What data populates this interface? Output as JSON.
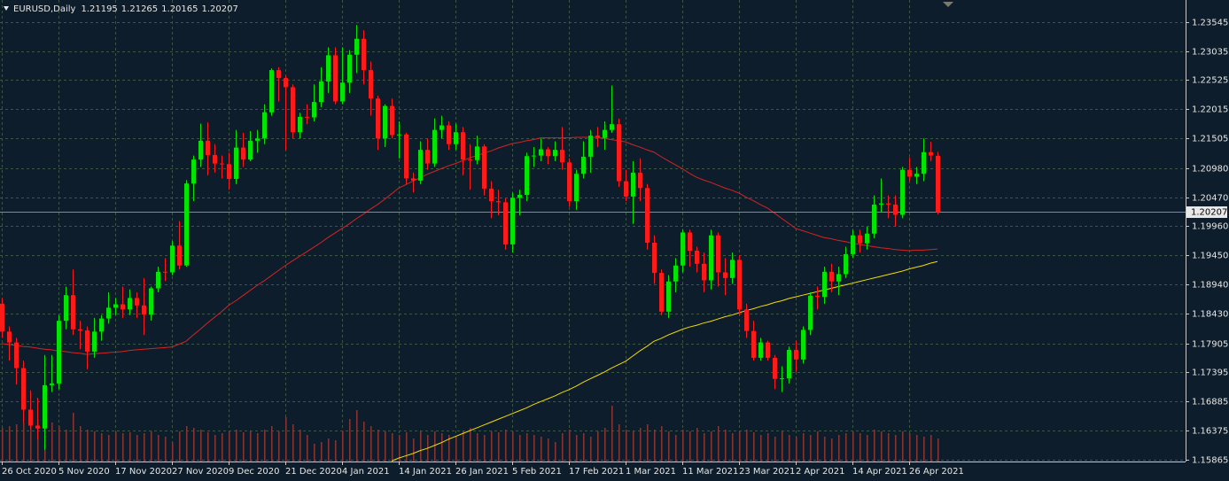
{
  "chart_data": {
    "type": "candlestick",
    "symbol": "EURUSD,Daily",
    "categories": [
      "26 Oct 2020",
      null,
      null,
      null,
      null,
      null,
      null,
      null,
      "5 Nov 2020",
      null,
      null,
      null,
      null,
      null,
      null,
      null,
      "17 Nov 2020",
      null,
      null,
      null,
      null,
      null,
      null,
      null,
      "27 Nov 2020",
      null,
      null,
      null,
      null,
      null,
      null,
      null,
      "9 Dec 2020",
      null,
      null,
      null,
      null,
      null,
      null,
      null,
      "21 Dec 2020",
      null,
      null,
      null,
      null,
      null,
      null,
      null,
      "4 Jan 2021",
      null,
      null,
      null,
      null,
      null,
      null,
      null,
      "14 Jan 2021",
      null,
      null,
      null,
      null,
      null,
      null,
      null,
      "26 Jan 2021",
      null,
      null,
      null,
      null,
      null,
      null,
      null,
      "5 Feb 2021",
      null,
      null,
      null,
      null,
      null,
      null,
      null,
      "17 Feb 2021",
      null,
      null,
      null,
      null,
      null,
      null,
      null,
      "1 Mar 2021",
      null,
      null,
      null,
      null,
      null,
      null,
      null,
      "11 Mar 2021",
      null,
      null,
      null,
      null,
      null,
      null,
      null,
      "23 Mar 2021",
      null,
      null,
      null,
      null,
      null,
      null,
      null,
      "2 Apr 2021",
      null,
      null,
      null,
      null,
      null,
      null,
      null,
      "14 Apr 2021",
      null,
      null,
      null,
      null,
      null,
      null,
      null,
      "26 Apr 2021",
      null,
      null,
      null,
      null
    ],
    "open": [
      1.186,
      1.1811,
      1.1792,
      1.1747,
      1.1674,
      1.1646,
      1.1641,
      1.1717,
      1.172,
      1.183,
      1.1875,
      1.1815,
      1.1813,
      1.1776,
      1.1811,
      1.1834,
      1.1853,
      1.1859,
      1.185,
      1.187,
      1.1857,
      1.1841,
      1.1887,
      1.1916,
      1.1915,
      1.1962,
      1.1927,
      1.2071,
      1.2113,
      1.2146,
      1.2121,
      1.2106,
      1.2105,
      1.2079,
      1.2134,
      1.2113,
      1.2146,
      1.215,
      1.2196,
      1.227,
      1.2256,
      1.224,
      1.2161,
      1.2188,
      1.2187,
      1.2214,
      1.225,
      1.2296,
      1.2215,
      1.2248,
      1.2297,
      1.2325,
      1.227,
      1.222,
      1.215,
      1.2207,
      1.2156,
      1.2157,
      1.208,
      1.2076,
      1.213,
      1.2106,
      1.2165,
      1.2173,
      1.214,
      1.2161,
      1.2113,
      1.2112,
      1.2136,
      1.2062,
      1.204,
      1.2038,
      1.1964,
      1.2046,
      1.2051,
      1.2119,
      1.212,
      1.2131,
      1.2119,
      1.213,
      1.2108,
      1.204,
      1.2088,
      1.2118,
      1.2155,
      1.2151,
      1.2165,
      1.2175,
      1.2075,
      1.2048,
      1.209,
      1.2063,
      1.1967,
      1.1914,
      1.1846,
      1.1899,
      1.1927,
      1.1985,
      1.1953,
      1.193,
      1.1901,
      1.198,
      1.1915,
      1.1905,
      1.1937,
      1.185,
      1.1812,
      1.1765,
      1.1792,
      1.1765,
      1.1728,
      1.1729,
      1.1779,
      1.1762,
      1.1814,
      1.1874,
      1.1872,
      1.1916,
      1.1899,
      1.1912,
      1.1947,
      1.198,
      1.1966,
      1.1983,
      1.2034,
      1.2036,
      1.2034,
      1.2016,
      1.2095,
      1.2083,
      1.2088,
      1.2126,
      1.21195
    ],
    "high": [
      1.187,
      1.182,
      1.18,
      1.176,
      1.1708,
      1.1695,
      1.177,
      1.177,
      1.184,
      1.189,
      1.192,
      1.183,
      1.182,
      1.1835,
      1.184,
      1.188,
      1.187,
      1.189,
      1.1885,
      1.188,
      1.1905,
      1.189,
      1.1925,
      1.194,
      1.197,
      1.2005,
      1.2077,
      1.212,
      1.2176,
      1.2178,
      1.214,
      1.212,
      1.2125,
      1.2165,
      1.216,
      1.2163,
      1.2165,
      1.221,
      1.2273,
      1.2275,
      1.226,
      1.2245,
      1.2195,
      1.221,
      1.2245,
      1.2275,
      1.231,
      1.231,
      1.231,
      1.2305,
      1.2349,
      1.234,
      1.2285,
      1.2225,
      1.221,
      1.222,
      1.218,
      1.216,
      1.209,
      1.2145,
      1.215,
      1.2185,
      1.219,
      1.218,
      1.2176,
      1.217,
      1.214,
      1.2155,
      1.214,
      1.2075,
      1.206,
      1.2045,
      1.2055,
      1.206,
      1.2125,
      1.2135,
      1.215,
      1.2135,
      1.2145,
      1.217,
      1.2115,
      1.2095,
      1.2145,
      1.2165,
      1.217,
      1.218,
      1.2243,
      1.2185,
      1.2095,
      1.211,
      1.2115,
      1.207,
      1.198,
      1.192,
      1.191,
      1.194,
      1.199,
      1.199,
      1.196,
      1.195,
      1.199,
      1.1985,
      1.194,
      1.195,
      1.1945,
      1.186,
      1.183,
      1.18,
      1.1795,
      1.177,
      1.175,
      1.1785,
      1.1795,
      1.182,
      1.188,
      1.189,
      1.1925,
      1.193,
      1.1925,
      1.196,
      1.199,
      1.199,
      1.1995,
      1.205,
      1.208,
      1.205,
      1.205,
      1.21,
      1.2117,
      1.21,
      1.215,
      1.2144,
      1.21265
    ],
    "low": [
      1.18,
      1.176,
      1.1718,
      1.165,
      1.164,
      1.1622,
      1.1603,
      1.1705,
      1.171,
      1.1815,
      1.1805,
      1.178,
      1.1745,
      1.1765,
      1.1795,
      1.1825,
      1.184,
      1.1835,
      1.184,
      1.1835,
      1.1805,
      1.183,
      1.188,
      1.19,
      1.191,
      1.192,
      1.1925,
      1.204,
      1.21,
      1.2085,
      1.209,
      1.208,
      1.206,
      1.207,
      1.21,
      1.211,
      1.2125,
      1.214,
      1.219,
      1.2215,
      1.213,
      1.215,
      1.215,
      1.2175,
      1.218,
      1.2205,
      1.223,
      1.221,
      1.221,
      1.223,
      1.2265,
      1.2245,
      1.219,
      1.213,
      1.2135,
      1.215,
      1.2115,
      1.207,
      1.2055,
      1.207,
      1.2095,
      1.21,
      1.215,
      1.213,
      1.213,
      1.2085,
      1.206,
      1.2105,
      1.205,
      1.201,
      1.2015,
      1.1955,
      1.195,
      1.2015,
      1.204,
      1.21,
      1.211,
      1.2105,
      1.211,
      1.2095,
      1.203,
      1.2025,
      1.208,
      1.209,
      1.2135,
      1.213,
      1.216,
      1.2065,
      1.204,
      1.2,
      1.204,
      1.1955,
      1.1895,
      1.184,
      1.1835,
      1.188,
      1.1915,
      1.1925,
      1.1915,
      1.188,
      1.1885,
      1.189,
      1.1875,
      1.1895,
      1.184,
      1.18,
      1.176,
      1.176,
      1.176,
      1.171,
      1.1705,
      1.172,
      1.174,
      1.1755,
      1.1805,
      1.185,
      1.186,
      1.188,
      1.1875,
      1.1905,
      1.194,
      1.195,
      1.1955,
      1.1975,
      1.202,
      1.201,
      1.1995,
      1.201,
      1.2075,
      1.207,
      1.2075,
      1.211,
      1.20165
    ],
    "close": [
      1.1811,
      1.1792,
      1.1747,
      1.1674,
      1.1646,
      1.1641,
      1.1717,
      1.172,
      1.183,
      1.1875,
      1.1815,
      1.1813,
      1.1776,
      1.1811,
      1.1834,
      1.1853,
      1.1859,
      1.185,
      1.187,
      1.1857,
      1.1841,
      1.1887,
      1.1916,
      1.1915,
      1.1962,
      1.1927,
      1.2071,
      1.2113,
      1.2146,
      1.2121,
      1.2106,
      1.2105,
      1.2079,
      1.2134,
      1.2113,
      1.2146,
      1.215,
      1.2196,
      1.227,
      1.2256,
      1.224,
      1.2161,
      1.2188,
      1.2187,
      1.2214,
      1.225,
      1.2296,
      1.2215,
      1.2248,
      1.2297,
      1.2325,
      1.227,
      1.222,
      1.215,
      1.2207,
      1.2156,
      1.2157,
      1.208,
      1.2076,
      1.213,
      1.2106,
      1.2165,
      1.2173,
      1.214,
      1.2161,
      1.2113,
      1.2112,
      1.2136,
      1.2062,
      1.204,
      1.2038,
      1.1964,
      1.2046,
      1.2051,
      1.2119,
      1.212,
      1.2131,
      1.2119,
      1.213,
      1.2108,
      1.204,
      1.2088,
      1.2118,
      1.2155,
      1.2151,
      1.2165,
      1.2175,
      1.2075,
      1.2048,
      1.209,
      1.2063,
      1.1967,
      1.1914,
      1.1846,
      1.1899,
      1.1927,
      1.1985,
      1.1953,
      1.193,
      1.1901,
      1.198,
      1.1915,
      1.1905,
      1.1937,
      1.185,
      1.1812,
      1.1765,
      1.1792,
      1.1765,
      1.1728,
      1.1729,
      1.1779,
      1.1762,
      1.1814,
      1.1874,
      1.1872,
      1.1916,
      1.1899,
      1.1912,
      1.1947,
      1.198,
      1.1966,
      1.1983,
      1.2034,
      1.2036,
      1.2034,
      1.2016,
      1.2095,
      1.2083,
      1.2088,
      1.2126,
      1.212,
      1.20207
    ],
    "volume": [
      38,
      40,
      42,
      44,
      45,
      48,
      52,
      44,
      40,
      36,
      55,
      40,
      36,
      34,
      32,
      30,
      34,
      32,
      33,
      30,
      32,
      34,
      30,
      28,
      22,
      34,
      40,
      38,
      36,
      33,
      30,
      32,
      34,
      36,
      33,
      34,
      32,
      36,
      40,
      34,
      50,
      42,
      36,
      30,
      20,
      22,
      26,
      24,
      35,
      48,
      58,
      45,
      40,
      36,
      34,
      32,
      30,
      33,
      26,
      34,
      30,
      34,
      32,
      30,
      28,
      34,
      38,
      32,
      30,
      34,
      33,
      36,
      34,
      30,
      32,
      30,
      28,
      26,
      22,
      32,
      36,
      30,
      32,
      28,
      34,
      38,
      63,
      42,
      36,
      34,
      38,
      42,
      36,
      40,
      34,
      30,
      36,
      34,
      38,
      32,
      34,
      40,
      36,
      32,
      34,
      36,
      33,
      30,
      32,
      28,
      34,
      30,
      28,
      32,
      30,
      34,
      28,
      26,
      30,
      32,
      34,
      32,
      30,
      36,
      34,
      32,
      30,
      34,
      32,
      30,
      28,
      30,
      26
    ],
    "up_color": "#00e600",
    "down_color": "#ff1a1a",
    "volume_color": "#8a3434",
    "series": [
      {
        "color": "#d42424",
        "values": [
          1.179,
          1.1788,
          1.1787,
          1.1785,
          1.1784,
          1.1782,
          1.178,
          1.1779,
          1.1777,
          1.1776,
          1.1774,
          1.1773,
          1.1771,
          1.1772,
          1.1773,
          1.1774,
          1.1775,
          1.1776,
          1.1778,
          1.1779,
          1.178,
          1.1781,
          1.1782,
          1.1783,
          1.1784,
          1.1789,
          1.1794,
          1.1805,
          1.1815,
          1.1826,
          1.1836,
          1.1846,
          1.1857,
          1.1865,
          1.1874,
          1.1883,
          1.1892,
          1.19,
          1.1909,
          1.1918,
          1.1927,
          1.1935,
          1.1943,
          1.1951,
          1.1959,
          1.1967,
          1.1976,
          1.1984,
          1.1992,
          1.2,
          1.2009,
          1.2017,
          1.2026,
          1.2034,
          1.2043,
          1.2053,
          1.2063,
          1.2069,
          1.2075,
          1.2081,
          1.2087,
          1.2092,
          1.2097,
          1.2102,
          1.2106,
          1.2111,
          1.2116,
          1.212,
          1.2124,
          1.2128,
          1.2133,
          1.2137,
          1.2141,
          1.2143,
          1.2146,
          1.2148,
          1.2151,
          1.2151,
          1.2151,
          1.2151,
          1.2151,
          1.2152,
          1.2152,
          1.2152,
          1.2152,
          1.215,
          1.2148,
          1.2146,
          1.2144,
          1.2139,
          1.2135,
          1.213,
          1.2126,
          1.2118,
          1.2111,
          1.2104,
          1.2097,
          1.2089,
          1.2082,
          1.2077,
          1.2073,
          1.2068,
          1.2063,
          1.2059,
          1.2054,
          1.2047,
          1.2041,
          1.2034,
          1.2028,
          1.2019,
          1.201,
          1.2001,
          1.1992,
          1.1988,
          1.1984,
          1.198,
          1.1976,
          1.1974,
          1.1971,
          1.1969,
          1.1966,
          1.1964,
          1.1962,
          1.196,
          1.1958,
          1.1957,
          1.1955,
          1.1954,
          1.1953,
          1.1954,
          1.1954,
          1.1955,
          1.1956
        ]
      },
      {
        "color": "#f2dc00",
        "values": [
          null,
          null,
          null,
          null,
          null,
          null,
          null,
          null,
          null,
          null,
          null,
          null,
          null,
          null,
          null,
          null,
          null,
          null,
          null,
          null,
          null,
          null,
          null,
          null,
          null,
          null,
          null,
          null,
          null,
          null,
          null,
          null,
          null,
          null,
          null,
          null,
          null,
          null,
          null,
          null,
          null,
          null,
          null,
          null,
          null,
          null,
          null,
          null,
          null,
          null,
          null,
          null,
          null,
          null,
          null,
          1.1584,
          1.1589,
          1.1593,
          1.1597,
          1.1602,
          1.1606,
          1.1611,
          1.1616,
          1.1622,
          1.1627,
          1.1632,
          1.1637,
          1.1642,
          1.1647,
          1.1652,
          1.1657,
          1.1662,
          1.1667,
          1.1672,
          1.1677,
          1.1683,
          1.1688,
          1.1693,
          1.1698,
          1.1704,
          1.1709,
          1.1715,
          1.1722,
          1.1728,
          1.1734,
          1.174,
          1.1747,
          1.1753,
          1.1759,
          1.1768,
          1.1777,
          1.1785,
          1.1794,
          1.1799,
          1.1805,
          1.181,
          1.1815,
          1.1819,
          1.1822,
          1.1826,
          1.1829,
          1.1833,
          1.1837,
          1.184,
          1.1844,
          1.1848,
          1.1851,
          1.1855,
          1.1858,
          1.1862,
          1.1865,
          1.1869,
          1.1872,
          1.1875,
          1.1878,
          1.1881,
          1.1884,
          1.1887,
          1.189,
          1.1893,
          1.1896,
          1.1899,
          1.1902,
          1.1905,
          1.1908,
          1.1911,
          1.1914,
          1.1917,
          1.1921,
          1.1924,
          1.1927,
          1.1931,
          1.1934
        ]
      }
    ],
    "ylim": [
      1.1583,
      1.2393
    ],
    "yticks": [
      1.23545,
      1.23035,
      1.22525,
      1.22015,
      1.21505,
      {
        "value": 1.2098,
        "label": "1.20980"
      },
      {
        "value": 1.2047,
        "label": "1.20470"
      },
      {
        "value": 1.1996,
        "label": "1.19960"
      },
      {
        "value": 1.1945,
        "label": "1.19450"
      },
      {
        "value": 1.1894,
        "label": "1.18940"
      },
      {
        "value": 1.1843,
        "label": "1.18430"
      },
      1.17905,
      1.17395,
      1.16885,
      1.16375,
      1.15865
    ],
    "grid": true
  }
}
